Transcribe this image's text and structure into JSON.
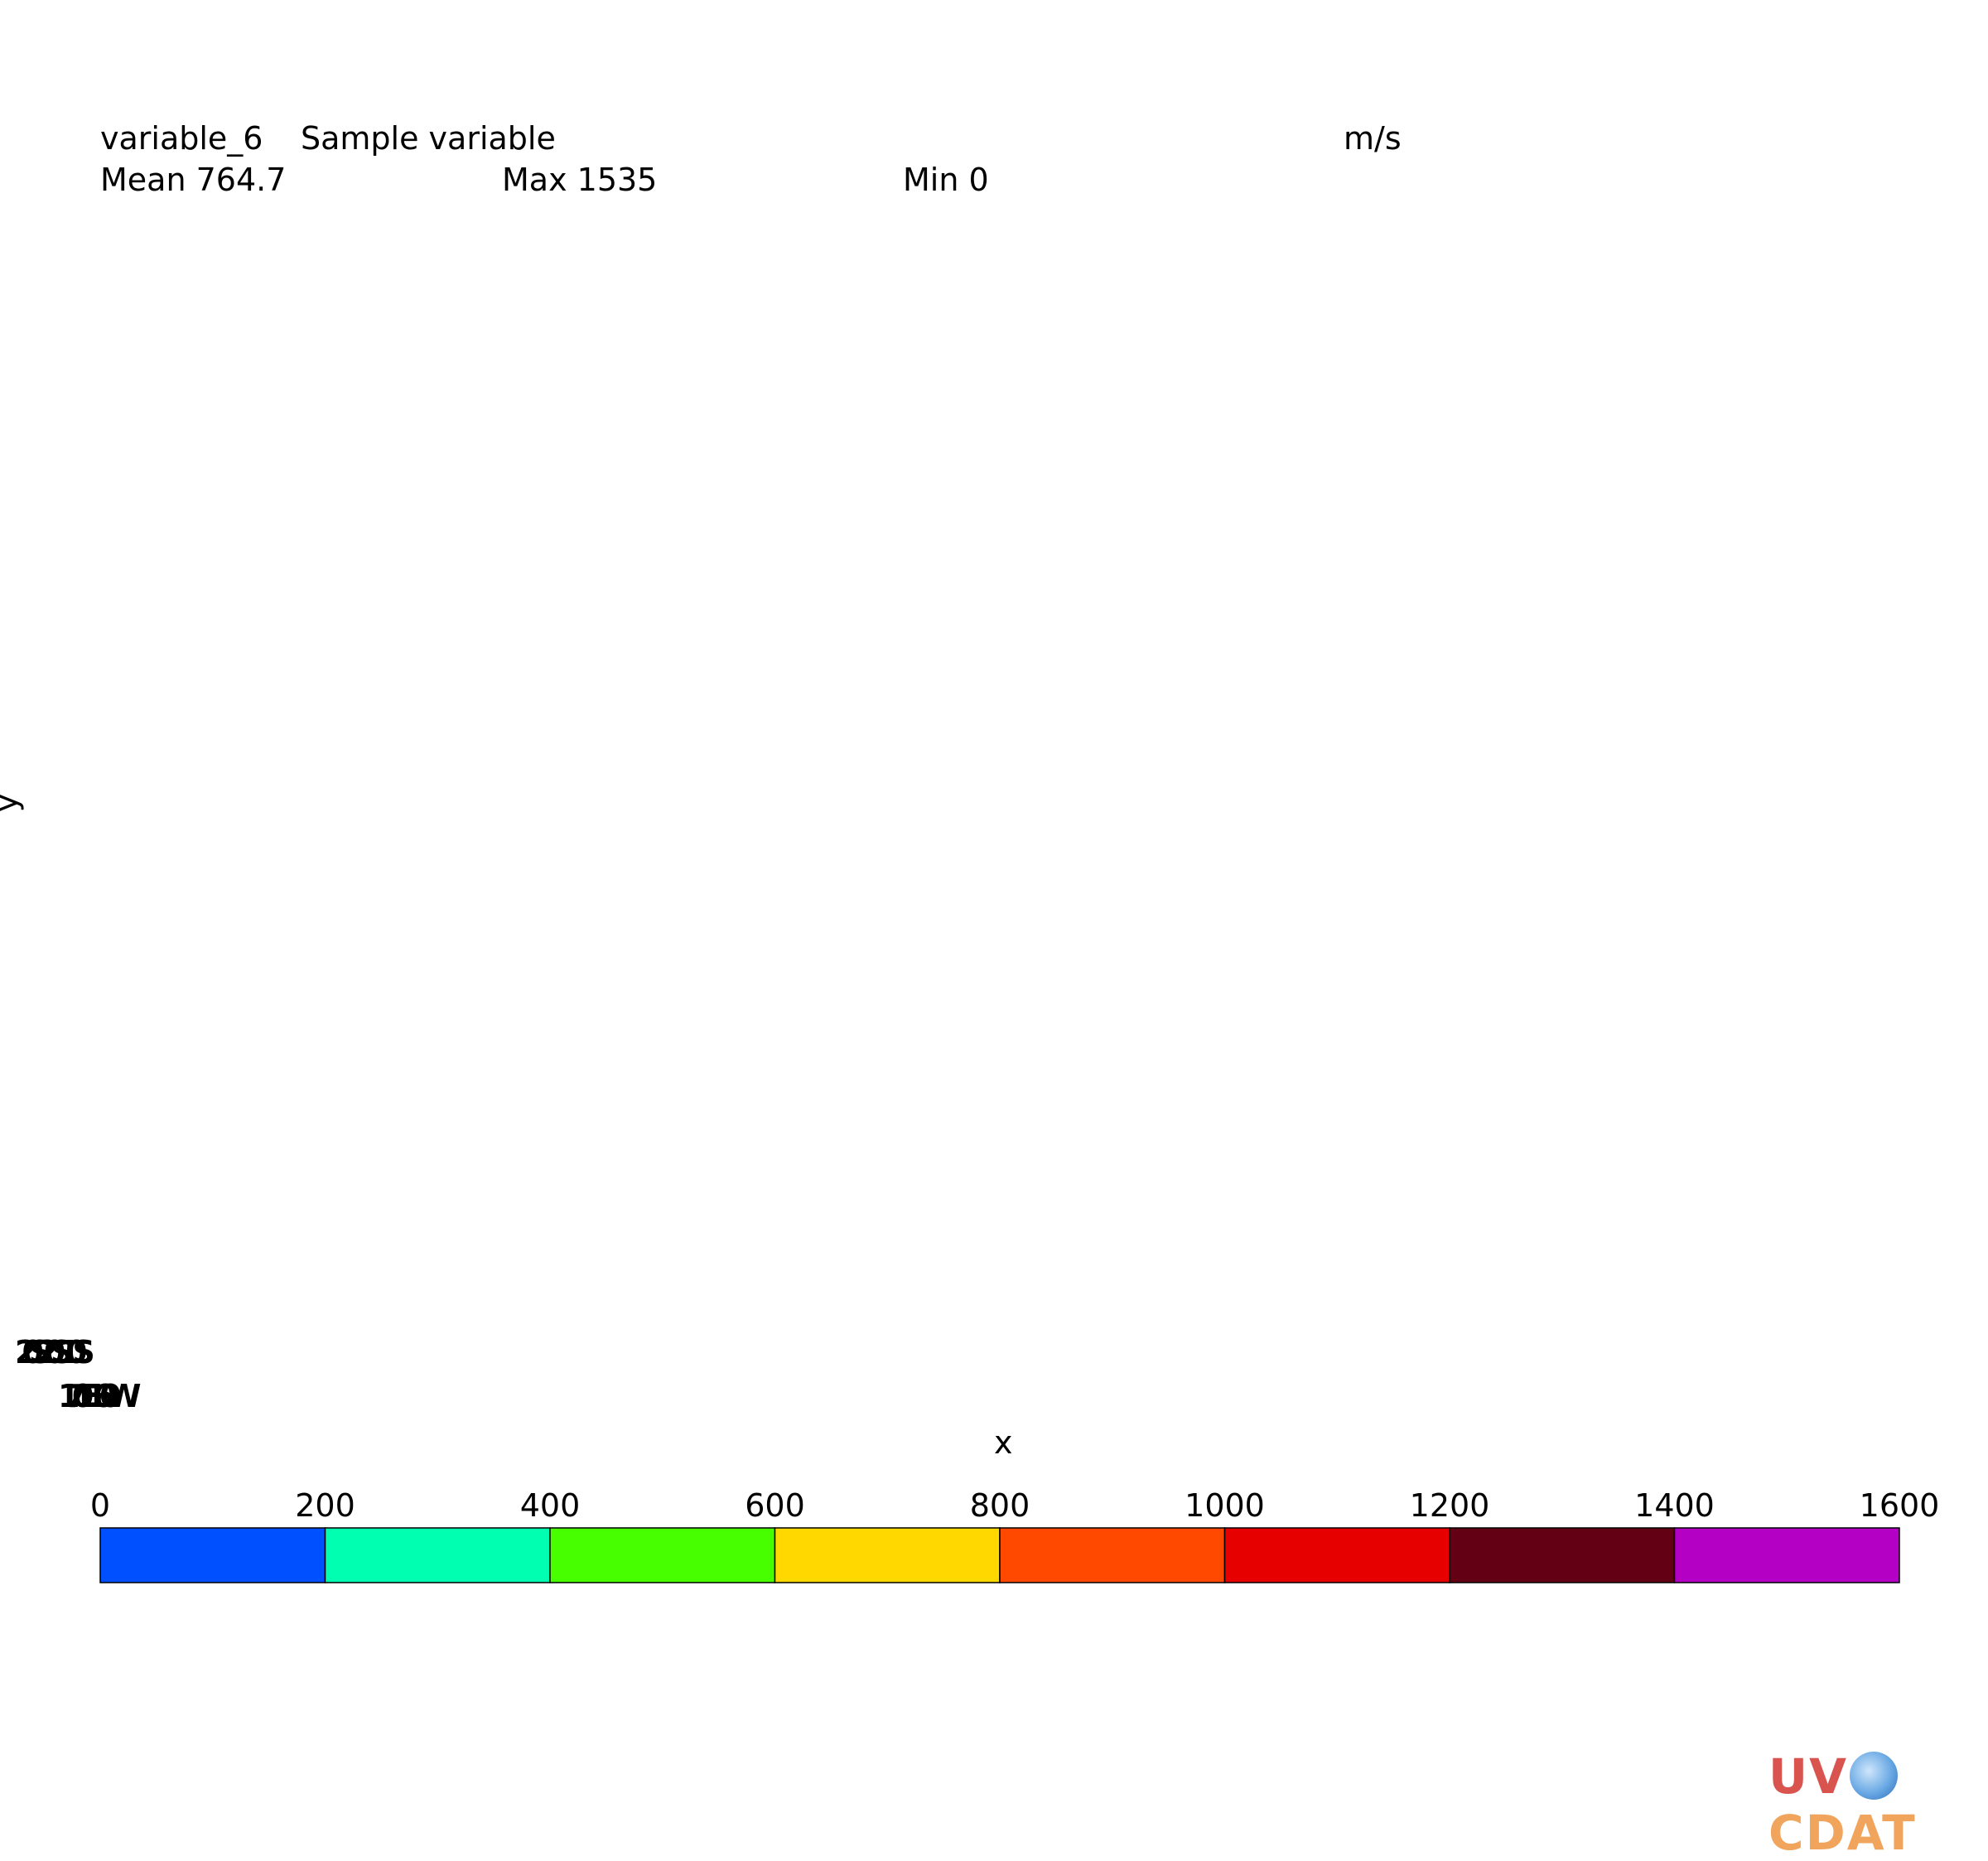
{
  "header": {
    "variable_name": "variable_6",
    "long_name": "Sample variable",
    "units": "m/s"
  },
  "stats": {
    "mean_label": "Mean 764.7",
    "max_label": "Max 1535",
    "min_label": "Min 0"
  },
  "axes": {
    "xlabel": "x",
    "ylabel": "y",
    "y_tick_clutter": "20S20S10S",
    "x_tick_clutter": "170E160W"
  },
  "chart_data": {
    "type": "heatmap",
    "title": "variable_6   Sample variable",
    "units": "m/s",
    "mean": 764.7,
    "max": 1535,
    "min": 0,
    "xlabel": "x",
    "ylabel": "y",
    "colorbar": {
      "levels": [
        0,
        200,
        400,
        600,
        800,
        1000,
        1200,
        1400,
        1600
      ],
      "tick_labels": [
        "0",
        "200",
        "400",
        "600",
        "800",
        "1000",
        "1200",
        "1400",
        "1600"
      ],
      "colors": [
        "#0050ff",
        "#00ffb0",
        "#48ff00",
        "#ffd800",
        "#ff4800",
        "#e60000",
        "#640014",
        "#b400c4"
      ]
    }
  },
  "logo": {
    "text_left": "UV",
    "text_right": "CDAT"
  }
}
